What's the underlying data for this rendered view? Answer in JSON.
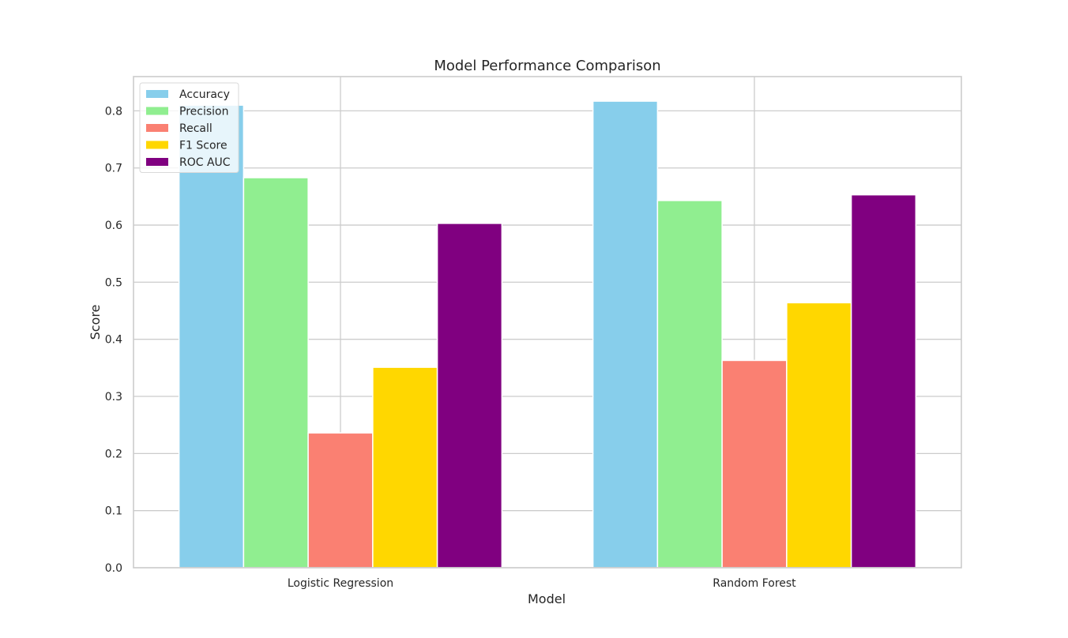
{
  "chart_data": {
    "type": "bar",
    "title": "Model Performance Comparison",
    "xlabel": "Model",
    "ylabel": "Score",
    "ylim": [
      0,
      0.86
    ],
    "yticks": [
      "0.0",
      "0.1",
      "0.2",
      "0.3",
      "0.4",
      "0.5",
      "0.6",
      "0.7",
      "0.8"
    ],
    "grid": true,
    "legend_position": "top-left",
    "categories": [
      "Logistic Regression",
      "Random Forest"
    ],
    "series": [
      {
        "name": "Accuracy",
        "color": "#87ceeb",
        "values": [
          0.81,
          0.817
        ]
      },
      {
        "name": "Precision",
        "color": "#90ee90",
        "values": [
          0.683,
          0.643
        ]
      },
      {
        "name": "Recall",
        "color": "#fa8072",
        "values": [
          0.236,
          0.363
        ]
      },
      {
        "name": "F1 Score",
        "color": "#ffd700",
        "values": [
          0.351,
          0.464
        ]
      },
      {
        "name": "ROC AUC",
        "color": "#800080",
        "values": [
          0.603,
          0.653
        ]
      }
    ]
  }
}
